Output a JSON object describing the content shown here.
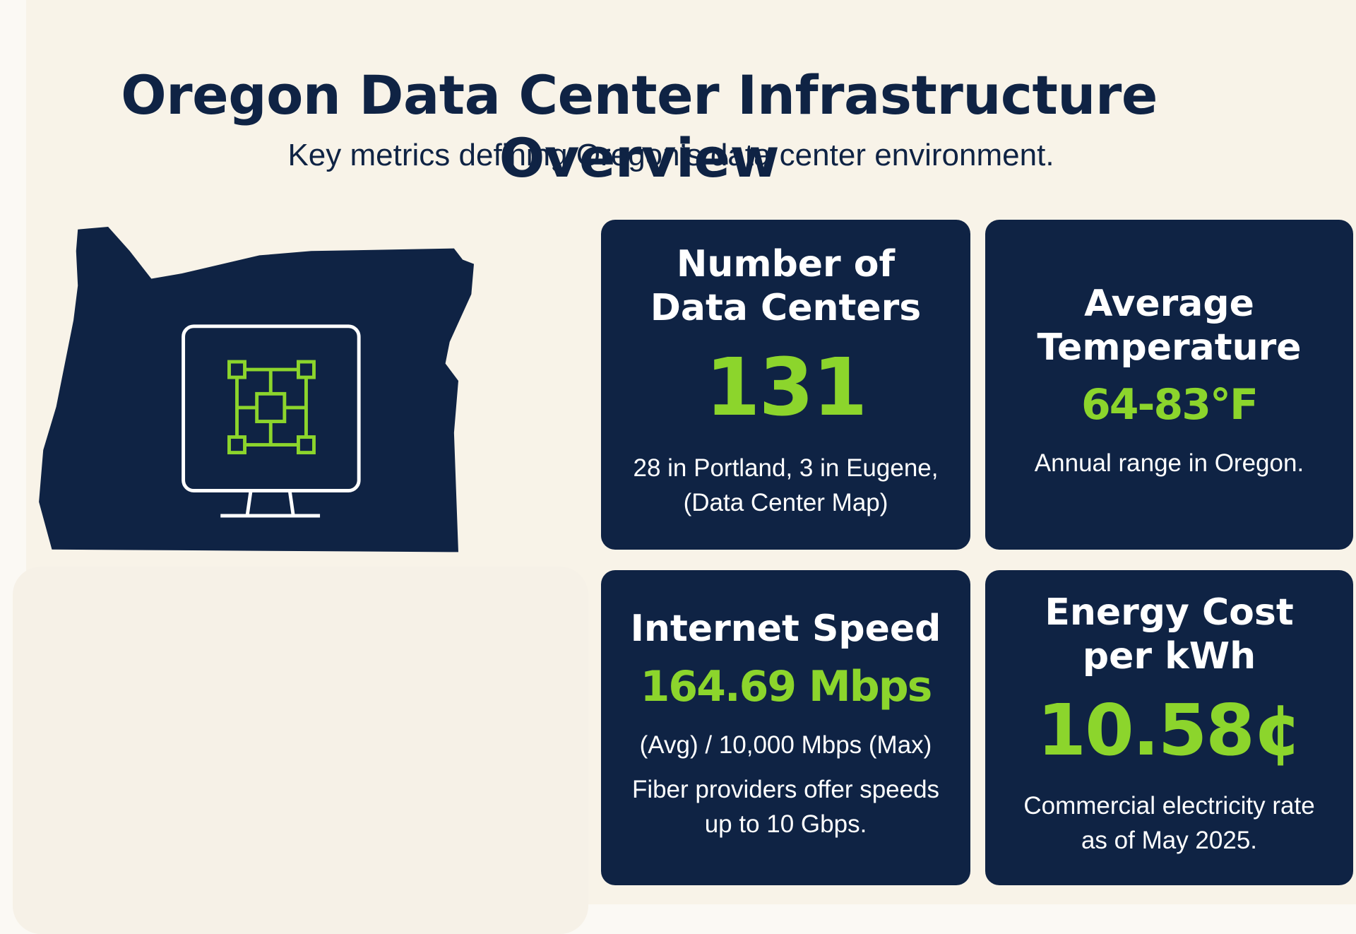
{
  "header": {
    "title": "Oregon Data Center Infrastructure Overview",
    "subtitle": "Key metrics defining Oregon’s data center environment."
  },
  "cards": [
    {
      "title": "Number of Data Centers",
      "value": "131",
      "notes": [
        "28 in Portland, 3 in Eugene, (Data Center Map)"
      ]
    },
    {
      "title": "Average Temperature",
      "value": "64-83°F",
      "notes": [
        "Annual range in Oregon."
      ]
    },
    {
      "title": "Internet Speed",
      "value": "164.69 Mbps",
      "notes": [
        "(Avg) / 10,000 Mbps (Max)",
        "Fiber providers offer speeds up to 10 Gbps."
      ]
    },
    {
      "title": "Energy Cost per kWh",
      "value": "10.58¢",
      "notes": [
        "Commercial electricity rate as of May 2025."
      ]
    }
  ]
}
